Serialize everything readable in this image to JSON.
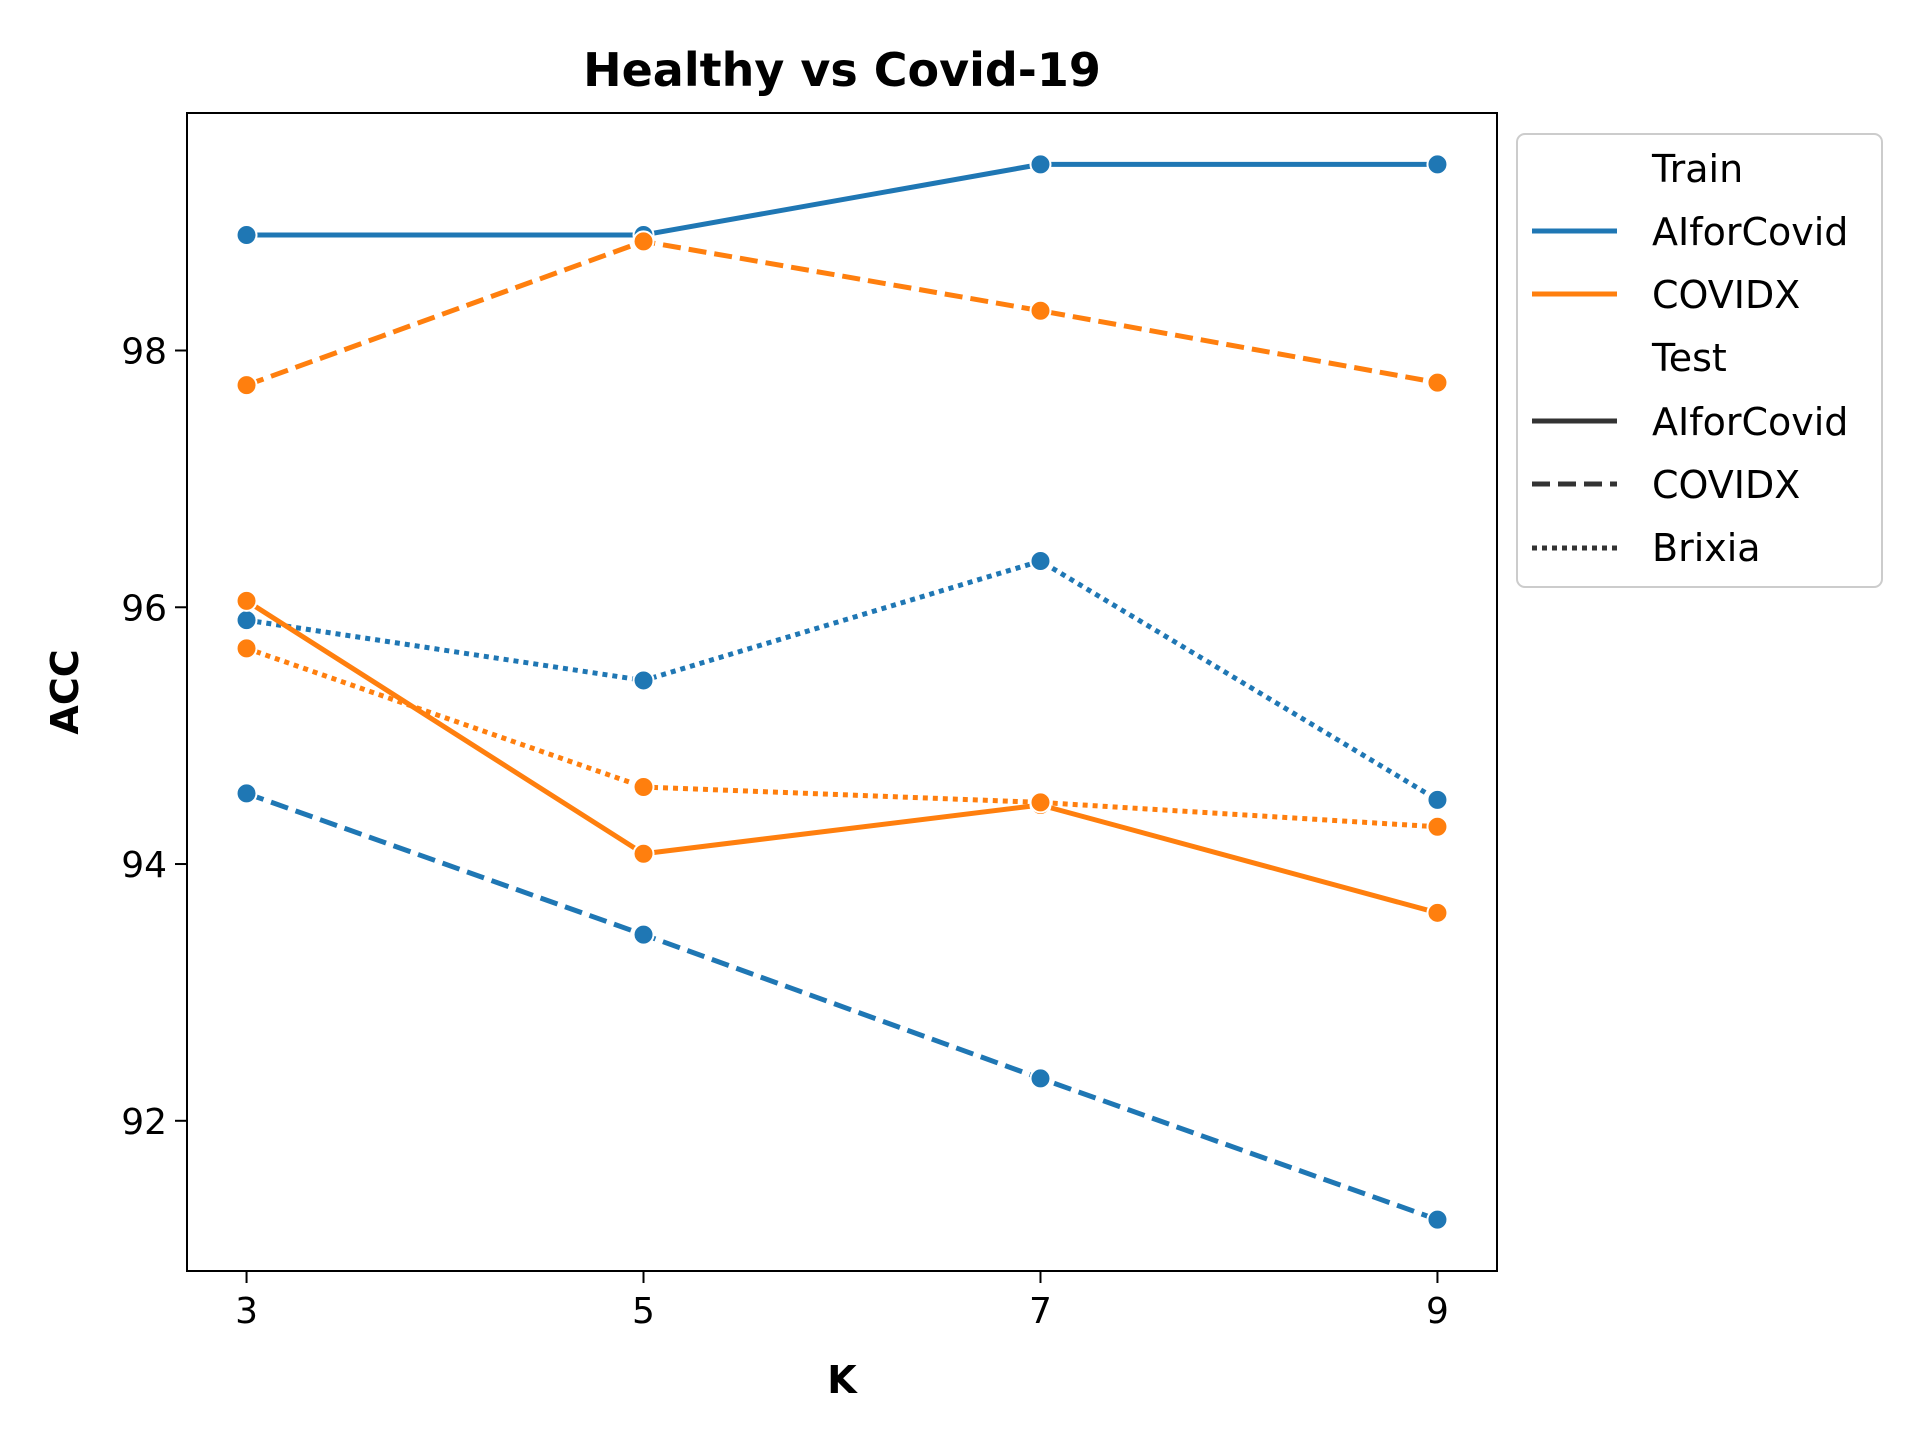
{
  "chart_data": {
    "type": "line",
    "title": "Healthy vs Covid-19",
    "xlabel": "K",
    "ylabel": "ACC",
    "x": [
      3,
      5,
      7,
      9
    ],
    "x_ticks": [
      "3",
      "5",
      "7",
      "9"
    ],
    "y_ticks": [
      92,
      94,
      96,
      98
    ],
    "xlim": [
      2.7,
      9.3
    ],
    "ylim": [
      90.83,
      99.85
    ],
    "grid": false,
    "legend_placement": "outside-top-right",
    "legend": {
      "hue_title": "Train",
      "hue_entries": [
        {
          "label": "AIforCovid",
          "color": "#1f77b4"
        },
        {
          "label": "COVIDX",
          "color": "#ff7f0e"
        }
      ],
      "style_title": "Test",
      "style_entries": [
        {
          "label": "AIforCovid",
          "dash": "solid"
        },
        {
          "label": "COVIDX",
          "dash": "dashed"
        },
        {
          "label": "Brixia",
          "dash": "dotted"
        }
      ]
    },
    "series": [
      {
        "train": "AIforCovid",
        "test": "AIforCovid",
        "color": "#1f77b4",
        "dash": "solid",
        "values": [
          98.9,
          98.9,
          99.45,
          99.45
        ]
      },
      {
        "train": "AIforCovid",
        "test": "COVIDX",
        "color": "#1f77b4",
        "dash": "dashed",
        "values": [
          94.55,
          93.45,
          92.33,
          91.23
        ]
      },
      {
        "train": "AIforCovid",
        "test": "Brixia",
        "color": "#1f77b4",
        "dash": "dotted",
        "values": [
          95.9,
          95.43,
          96.36,
          94.5
        ]
      },
      {
        "train": "COVIDX",
        "test": "AIforCovid",
        "color": "#ff7f0e",
        "dash": "solid",
        "values": [
          96.05,
          94.08,
          94.46,
          93.62
        ]
      },
      {
        "train": "COVIDX",
        "test": "COVIDX",
        "color": "#ff7f0e",
        "dash": "dashed",
        "values": [
          97.73,
          98.85,
          98.31,
          97.75
        ]
      },
      {
        "train": "COVIDX",
        "test": "Brixia",
        "color": "#ff7f0e",
        "dash": "dotted",
        "values": [
          95.68,
          94.6,
          94.48,
          94.29
        ]
      }
    ]
  }
}
